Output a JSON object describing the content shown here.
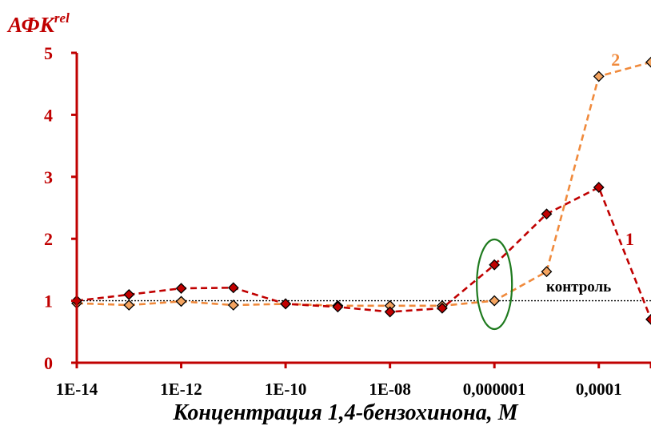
{
  "chart_data": {
    "type": "line",
    "ylabel_main": "АФК",
    "ylabel_sup": "rel",
    "xlabel": "Концентрация 1,4-бензохинона, М",
    "x_scale": "log",
    "x_tick_values": [
      1e-14,
      1e-12,
      1e-10,
      1e-08,
      1e-06,
      0.0001
    ],
    "x_tick_labels": [
      "1E-14",
      "1E-12",
      "1E-10",
      "1E-08",
      "0,000001",
      "0,0001"
    ],
    "x_range": [
      1e-14,
      0.001
    ],
    "ylim": [
      0,
      5
    ],
    "y_ticks": [
      0,
      1,
      2,
      3,
      4,
      5
    ],
    "grid": false,
    "reference_line": {
      "y": 1,
      "label": "контроль"
    },
    "highlight_ellipse_x": 1e-06,
    "series": [
      {
        "name": "1",
        "color": "#c00000",
        "marker_color": "#c00000",
        "x": [
          1e-14,
          1e-13,
          1e-12,
          1e-11,
          1e-10,
          1e-09,
          1e-08,
          1e-07,
          1e-06,
          1e-05,
          0.0001,
          0.001
        ],
        "y": [
          1.0,
          1.1,
          1.2,
          1.21,
          0.95,
          0.9,
          0.82,
          0.88,
          1.58,
          2.4,
          2.83,
          0.7
        ]
      },
      {
        "name": "2",
        "color": "#f08a3c",
        "marker_color": "#f4a460",
        "x": [
          1e-14,
          1e-13,
          1e-12,
          1e-11,
          1e-10,
          1e-09,
          1e-08,
          1e-07,
          1e-06,
          1e-05,
          0.0001,
          0.001
        ],
        "y": [
          0.96,
          0.93,
          0.99,
          0.93,
          0.95,
          0.92,
          0.92,
          0.92,
          1.0,
          1.47,
          4.62,
          4.85
        ]
      }
    ],
    "colors": {
      "axis": "#c00000",
      "ellipse": "#1e7a1e",
      "reference": "#000000"
    }
  }
}
